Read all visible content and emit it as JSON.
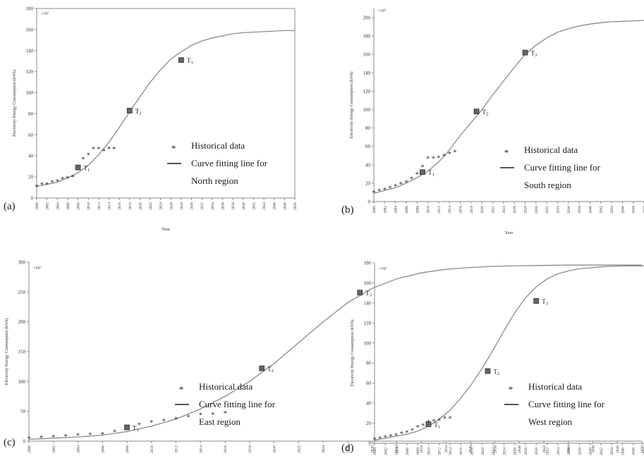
{
  "figure": {
    "colors": {
      "axis": "#8a8a8a",
      "curve": "#8a8a8a",
      "marker": "#333333",
      "text": "#1a1a1a"
    }
  },
  "chart_data": [
    {
      "panel_label": "(a)",
      "type": "line",
      "xlabel": "Year",
      "ylabel": "Electricity Energy Consumption (kWh)",
      "scale_note": "×10⁷",
      "x_range": [
        2000,
        2050
      ],
      "ylim": [
        0,
        180
      ],
      "yticks": [
        0,
        20,
        40,
        60,
        80,
        100,
        120,
        140,
        160,
        180
      ],
      "xticks": [
        2000,
        2002,
        2004,
        2006,
        2008,
        2010,
        2012,
        2014,
        2016,
        2018,
        2020,
        2022,
        2024,
        2026,
        2028,
        2030,
        2032,
        2034,
        2036,
        2038,
        2040,
        2042,
        2044,
        2046,
        2048,
        2050
      ],
      "legend": {
        "marker_label": "Historical data",
        "line_label_1": "Curve fitting line for",
        "line_label_2": "North region"
      },
      "historical": {
        "x": [
          2000,
          2001,
          2002,
          2003,
          2004,
          2005,
          2006,
          2007,
          2008,
          2009,
          2010,
          2011,
          2012,
          2013,
          2014,
          2015
        ],
        "y": [
          11,
          13,
          13,
          15,
          16,
          18,
          19,
          20,
          28,
          37,
          41,
          47,
          47,
          45,
          47,
          47
        ]
      },
      "curve": {
        "x": [
          2000,
          2002,
          2004,
          2006,
          2008,
          2010,
          2012,
          2014,
          2016,
          2018,
          2020,
          2022,
          2024,
          2026,
          2028,
          2030,
          2032,
          2034,
          2036,
          2038,
          2040,
          2042,
          2044,
          2046,
          2048,
          2050
        ],
        "y": [
          11,
          13,
          15,
          19,
          24,
          31,
          41,
          53,
          67,
          82,
          96,
          110,
          122,
          132,
          139,
          145,
          149,
          152,
          154,
          156,
          157,
          157.5,
          158,
          158.5,
          159,
          159
        ]
      },
      "turning_points": [
        {
          "label": "T",
          "sub": "1",
          "x": 2008,
          "y": 29
        },
        {
          "label": "T",
          "sub": "2",
          "x": 2018,
          "y": 83
        },
        {
          "label": "T",
          "sub": "3",
          "x": 2028,
          "y": 131
        }
      ]
    },
    {
      "panel_label": "(b)",
      "type": "line",
      "xlabel": "Year",
      "ylabel": "Electricity Energy Consumption (kWh)",
      "scale_note": "×10⁷",
      "x_range": [
        2000,
        2050
      ],
      "ylim": [
        0,
        210
      ],
      "yticks": [
        0,
        20,
        40,
        60,
        80,
        100,
        120,
        140,
        160,
        180,
        200
      ],
      "xticks": [
        2000,
        2002,
        2004,
        2006,
        2008,
        2010,
        2012,
        2014,
        2016,
        2018,
        2020,
        2022,
        2024,
        2026,
        2028,
        2030,
        2032,
        2034,
        2036,
        2038,
        2040,
        2042,
        2044,
        2046,
        2048,
        2050
      ],
      "legend": {
        "marker_label": "Historical data",
        "line_label_1": "Curve fitting line for",
        "line_label_2": "South region"
      },
      "historical": {
        "x": [
          2000,
          2001,
          2002,
          2003,
          2004,
          2005,
          2006,
          2007,
          2008,
          2009,
          2010,
          2011,
          2012,
          2013,
          2014,
          2015
        ],
        "y": [
          10,
          12,
          13,
          15,
          17,
          19,
          21,
          25,
          30,
          38,
          47,
          47,
          48,
          50,
          52,
          54
        ]
      },
      "curve": {
        "x": [
          2000,
          2002,
          2004,
          2006,
          2008,
          2010,
          2012,
          2014,
          2016,
          2018,
          2020,
          2022,
          2024,
          2026,
          2028,
          2030,
          2032,
          2034,
          2036,
          2038,
          2040,
          2042,
          2044,
          2046,
          2048,
          2050
        ],
        "y": [
          9,
          12,
          15,
          20,
          26,
          33,
          43,
          56,
          72,
          86,
          100,
          116,
          131,
          146,
          160,
          170,
          178,
          184,
          188,
          191,
          193,
          194.5,
          195.5,
          196,
          196.5,
          197
        ]
      },
      "turning_points": [
        {
          "label": "T",
          "sub": "1",
          "x": 2009,
          "y": 32
        },
        {
          "label": "T",
          "sub": "2",
          "x": 2019,
          "y": 98
        },
        {
          "label": "T",
          "sub": "3",
          "x": 2028,
          "y": 162
        }
      ]
    },
    {
      "panel_label": "(c)",
      "type": "line",
      "xlabel": "Year",
      "ylabel": "Electricity Energy Consumption (kWh)",
      "scale_note": "×10⁷",
      "x_range": [
        2000,
        2050
      ],
      "ylim": [
        0,
        300
      ],
      "yticks": [
        0,
        50,
        100,
        150,
        200,
        250,
        300
      ],
      "xticks": [
        2000,
        2002,
        2004,
        2006,
        2008,
        2010,
        2012,
        2014,
        2016,
        2018,
        2020,
        2022,
        2024,
        2026,
        2028,
        2030,
        2032,
        2034,
        2036,
        2038,
        2040,
        2042,
        2044,
        2046,
        2048,
        2050
      ],
      "legend": {
        "marker_label": "Historical data",
        "line_label_1": "Curve fitting line for",
        "line_label_2": "East region"
      },
      "historical": {
        "x": [
          2000,
          2001,
          2002,
          2003,
          2004,
          2005,
          2006,
          2007,
          2008,
          2009,
          2010,
          2011,
          2012,
          2013,
          2014,
          2015,
          2016
        ],
        "y": [
          5,
          6,
          7,
          8,
          10,
          11,
          12,
          16,
          24,
          28,
          32,
          34,
          37,
          41,
          44,
          45,
          47
        ]
      },
      "curve": {
        "x": [
          2000,
          2002,
          2004,
          2006,
          2008,
          2010,
          2012,
          2014,
          2016,
          2018,
          2020,
          2022,
          2024,
          2026,
          2028,
          2030,
          2032,
          2034,
          2036,
          2038,
          2040,
          2042,
          2044,
          2046,
          2048,
          2050
        ],
        "y": [
          3,
          5,
          7,
          10,
          16,
          25,
          37,
          54,
          75,
          100,
          130,
          165,
          200,
          232,
          256,
          272,
          282,
          288,
          291,
          293,
          294,
          294.5,
          295,
          295,
          295,
          295
        ]
      },
      "turning_points": [
        {
          "label": "T",
          "sub": "1",
          "x": 2008,
          "y": 23
        },
        {
          "label": "T",
          "sub": "2",
          "x": 2019,
          "y": 122
        },
        {
          "label": "T",
          "sub": "3",
          "x": 2027,
          "y": 249
        }
      ]
    },
    {
      "panel_label": "(d)",
      "type": "line",
      "xlabel": "Year",
      "ylabel": "Electricity Energy Consumption (kWh)",
      "scale_note": "×10⁷",
      "x_range": [
        2000,
        2050
      ],
      "ylim": [
        0,
        180
      ],
      "yticks": [
        0,
        20,
        40,
        60,
        80,
        100,
        120,
        140,
        160,
        180
      ],
      "xticks": [
        2000,
        2002,
        2004,
        2006,
        2008,
        2010,
        2012,
        2014,
        2016,
        2018,
        2020,
        2022,
        2024,
        2026,
        2028,
        2030,
        2032,
        2034,
        2036,
        2038,
        2040,
        2042,
        2044,
        2046,
        2048,
        2050
      ],
      "legend": {
        "marker_label": "Historical data",
        "line_label_1": "Curve fitting line for",
        "line_label_2": "West region"
      },
      "historical": {
        "x": [
          2000,
          2001,
          2002,
          2003,
          2004,
          2005,
          2006,
          2007,
          2008,
          2009,
          2010,
          2011,
          2012,
          2013,
          2014
        ],
        "y": [
          4,
          5,
          6,
          7,
          8,
          10,
          11,
          13,
          16,
          18,
          21,
          22,
          23,
          25,
          25
        ]
      },
      "curve": {
        "x": [
          2000,
          2002,
          2004,
          2006,
          2008,
          2010,
          2012,
          2014,
          2016,
          2018,
          2020,
          2022,
          2024,
          2026,
          2028,
          2030,
          2032,
          2034,
          2036,
          2038,
          2040,
          2042,
          2044,
          2046,
          2048,
          2050
        ],
        "y": [
          3,
          5,
          7,
          9,
          12,
          17,
          24,
          33,
          45,
          59,
          75,
          93,
          112,
          130,
          145,
          156,
          164,
          169,
          172,
          174,
          175,
          176,
          176.5,
          177,
          177,
          177
        ]
      },
      "turning_points": [
        {
          "label": "T",
          "sub": "1",
          "x": 2010,
          "y": 19
        },
        {
          "label": "T",
          "sub": "2",
          "x": 2021,
          "y": 72
        },
        {
          "label": "T",
          "sub": "3",
          "x": 2030,
          "y": 142
        }
      ]
    }
  ]
}
